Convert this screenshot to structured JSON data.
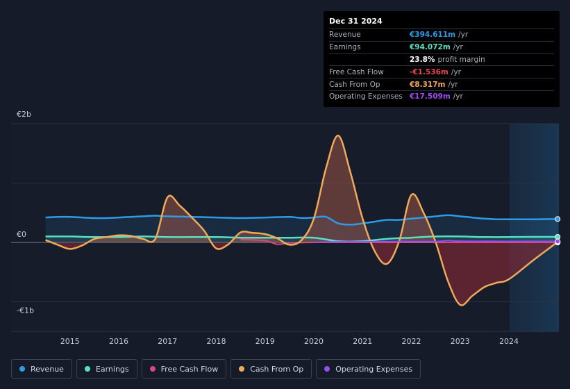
{
  "chart_data": {
    "type": "line",
    "title": "",
    "y_labels": [
      "€2b",
      "€0",
      "-€1b"
    ],
    "ylim": [
      -1.5,
      2.0
    ],
    "xlim": [
      2014.0,
      2025.0
    ],
    "x_ticks": [
      "2015",
      "2016",
      "2017",
      "2018",
      "2019",
      "2020",
      "2021",
      "2022",
      "2023",
      "2024"
    ],
    "past_data_marker": 2024.0,
    "series": [
      {
        "name": "Revenue",
        "color": "#2e9be6",
        "points": [
          [
            2014.5,
            0.42
          ],
          [
            2014.75,
            0.43
          ],
          [
            2015.0,
            0.43
          ],
          [
            2015.25,
            0.42
          ],
          [
            2015.5,
            0.41
          ],
          [
            2015.75,
            0.41
          ],
          [
            2016.0,
            0.42
          ],
          [
            2016.25,
            0.43
          ],
          [
            2016.5,
            0.44
          ],
          [
            2016.75,
            0.45
          ],
          [
            2017.0,
            0.44
          ],
          [
            2017.5,
            0.43
          ],
          [
            2018.0,
            0.42
          ],
          [
            2018.5,
            0.41
          ],
          [
            2019.0,
            0.42
          ],
          [
            2019.5,
            0.43
          ],
          [
            2019.75,
            0.41
          ],
          [
            2020.0,
            0.42
          ],
          [
            2020.25,
            0.43
          ],
          [
            2020.5,
            0.32
          ],
          [
            2020.75,
            0.3
          ],
          [
            2021.0,
            0.32
          ],
          [
            2021.25,
            0.35
          ],
          [
            2021.5,
            0.38
          ],
          [
            2021.75,
            0.38
          ],
          [
            2022.0,
            0.4
          ],
          [
            2022.25,
            0.42
          ],
          [
            2022.5,
            0.44
          ],
          [
            2022.75,
            0.46
          ],
          [
            2023.0,
            0.44
          ],
          [
            2023.25,
            0.42
          ],
          [
            2023.5,
            0.4
          ],
          [
            2023.75,
            0.39
          ],
          [
            2024.0,
            0.39
          ],
          [
            2024.5,
            0.39
          ],
          [
            2025.0,
            0.394611
          ]
        ]
      },
      {
        "name": "Earnings",
        "color": "#58e1c1",
        "points": [
          [
            2014.5,
            0.1
          ],
          [
            2015.0,
            0.1
          ],
          [
            2015.5,
            0.09
          ],
          [
            2016.0,
            0.09
          ],
          [
            2016.5,
            0.1
          ],
          [
            2017.0,
            0.09
          ],
          [
            2017.5,
            0.09
          ],
          [
            2018.0,
            0.09
          ],
          [
            2018.5,
            0.08
          ],
          [
            2019.0,
            0.08
          ],
          [
            2019.5,
            0.08
          ],
          [
            2020.0,
            0.08
          ],
          [
            2020.5,
            0.02
          ],
          [
            2021.0,
            0.02
          ],
          [
            2021.5,
            0.06
          ],
          [
            2022.0,
            0.08
          ],
          [
            2022.5,
            0.1
          ],
          [
            2023.0,
            0.1
          ],
          [
            2023.5,
            0.09
          ],
          [
            2024.0,
            0.09
          ],
          [
            2024.5,
            0.094
          ],
          [
            2025.0,
            0.094072
          ]
        ]
      },
      {
        "name": "Free Cash Flow",
        "color": "#d44a7f",
        "points": [
          [
            2018.5,
            0.05
          ],
          [
            2019.0,
            0.03
          ],
          [
            2019.25,
            -0.03
          ],
          [
            2019.5,
            -0.01
          ],
          [
            2020.0,
            0.0
          ],
          [
            2020.5,
            0.0
          ],
          [
            2021.0,
            0.0
          ],
          [
            2021.5,
            0.0
          ],
          [
            2022.0,
            0.0
          ],
          [
            2022.5,
            0.0
          ],
          [
            2023.0,
            0.0
          ],
          [
            2023.5,
            0.0
          ],
          [
            2024.0,
            0.0
          ],
          [
            2024.5,
            0.0
          ],
          [
            2025.0,
            -0.001536
          ]
        ]
      },
      {
        "name": "Cash From Op",
        "color": "#f0aa5a",
        "points": [
          [
            2014.5,
            0.04
          ],
          [
            2014.75,
            -0.04
          ],
          [
            2015.0,
            -0.11
          ],
          [
            2015.25,
            -0.05
          ],
          [
            2015.5,
            0.06
          ],
          [
            2015.75,
            0.09
          ],
          [
            2016.0,
            0.12
          ],
          [
            2016.25,
            0.11
          ],
          [
            2016.5,
            0.06
          ],
          [
            2016.75,
            0.06
          ],
          [
            2017.0,
            0.76
          ],
          [
            2017.25,
            0.62
          ],
          [
            2017.5,
            0.42
          ],
          [
            2017.75,
            0.2
          ],
          [
            2018.0,
            -0.1
          ],
          [
            2018.25,
            -0.03
          ],
          [
            2018.5,
            0.17
          ],
          [
            2018.75,
            0.16
          ],
          [
            2019.0,
            0.14
          ],
          [
            2019.25,
            0.07
          ],
          [
            2019.5,
            -0.04
          ],
          [
            2019.75,
            0.04
          ],
          [
            2020.0,
            0.4
          ],
          [
            2020.25,
            1.25
          ],
          [
            2020.5,
            1.8
          ],
          [
            2020.75,
            1.18
          ],
          [
            2021.0,
            0.4
          ],
          [
            2021.25,
            -0.15
          ],
          [
            2021.5,
            -0.36
          ],
          [
            2021.75,
            0.02
          ],
          [
            2022.0,
            0.8
          ],
          [
            2022.25,
            0.5
          ],
          [
            2022.5,
            0.0
          ],
          [
            2022.75,
            -0.65
          ],
          [
            2023.0,
            -1.05
          ],
          [
            2023.25,
            -0.9
          ],
          [
            2023.5,
            -0.75
          ],
          [
            2023.75,
            -0.68
          ],
          [
            2024.0,
            -0.62
          ],
          [
            2024.5,
            -0.3
          ],
          [
            2025.0,
            0.008317
          ]
        ]
      },
      {
        "name": "Operating Expenses",
        "color": "#9a4cf0",
        "points": [
          [
            2020.0,
            0.0
          ],
          [
            2020.5,
            0.01
          ],
          [
            2021.0,
            0.01
          ],
          [
            2021.5,
            0.015
          ],
          [
            2022.0,
            0.015
          ],
          [
            2022.5,
            0.015
          ],
          [
            2022.75,
            0.03
          ],
          [
            2023.0,
            0.02
          ],
          [
            2023.5,
            0.02
          ],
          [
            2024.0,
            0.018
          ],
          [
            2024.5,
            0.0175
          ],
          [
            2025.0,
            0.017509
          ]
        ]
      }
    ]
  },
  "tooltip": {
    "date": "Dec 31 2024",
    "rows": [
      {
        "label": "Revenue",
        "value": "€394.611m",
        "unit": "/yr",
        "color": "#2e9be6"
      },
      {
        "label": "Earnings",
        "value": "€94.072m",
        "unit": "/yr",
        "color": "#58e1c1"
      },
      {
        "label": "",
        "value": "23.8%",
        "unit": "profit margin",
        "color": "#ffffff"
      },
      {
        "label": "Free Cash Flow",
        "value": "-€1.536m",
        "unit": "/yr",
        "color": "#e5484d"
      },
      {
        "label": "Cash From Op",
        "value": "€8.317m",
        "unit": "/yr",
        "color": "#f0aa5a"
      },
      {
        "label": "Operating Expenses",
        "value": "€17.509m",
        "unit": "/yr",
        "color": "#9a4cf0"
      }
    ]
  },
  "legend": [
    {
      "label": "Revenue",
      "color": "#2e9be6"
    },
    {
      "label": "Earnings",
      "color": "#58e1c1"
    },
    {
      "label": "Free Cash Flow",
      "color": "#d44a7f"
    },
    {
      "label": "Cash From Op",
      "color": "#f0aa5a"
    },
    {
      "label": "Operating Expenses",
      "color": "#9a4cf0"
    }
  ]
}
